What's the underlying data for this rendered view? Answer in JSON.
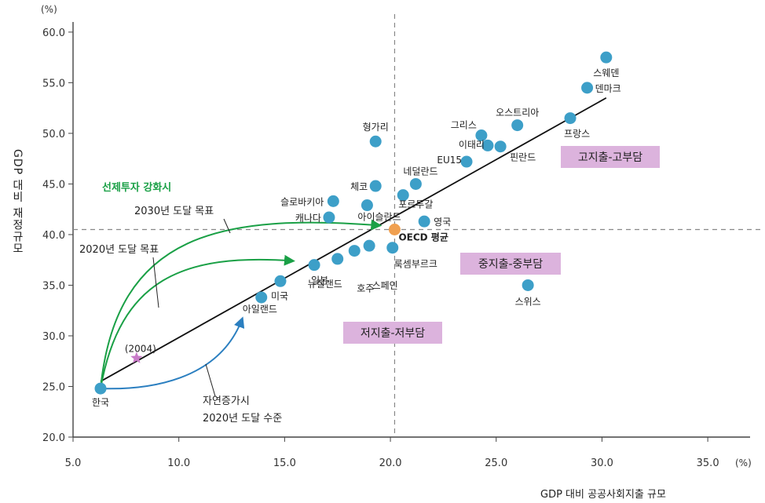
{
  "chart_data": {
    "type": "scatter",
    "xlabel": "GDP 대비 공공사회지출 규모",
    "ylabel": "GDP 대비 재정규모",
    "x_unit": "(%)",
    "y_unit": "(%)",
    "xlim": [
      5.0,
      37.0
    ],
    "ylim": [
      20.0,
      61.0
    ],
    "x_ticks": [
      "5.0",
      "10.0",
      "15.0",
      "20.0",
      "25.0",
      "30.0",
      "35.0"
    ],
    "y_ticks": [
      "20.0",
      "25.0",
      "30.0",
      "35.0",
      "40.0",
      "45.0",
      "50.0",
      "55.0",
      "60.0"
    ],
    "grid": false,
    "reference_lines": {
      "x": 20.2,
      "y": 40.5
    },
    "points": [
      {
        "label": "스웨덴",
        "x": 30.2,
        "y": 57.5
      },
      {
        "label": "덴마크",
        "x": 29.3,
        "y": 54.5
      },
      {
        "label": "프랑스",
        "x": 28.5,
        "y": 51.5
      },
      {
        "label": "오스트리아",
        "x": 26.0,
        "y": 50.8
      },
      {
        "label": "그리스",
        "x": 24.3,
        "y": 49.8
      },
      {
        "label": "이태리",
        "x": 24.6,
        "y": 48.8
      },
      {
        "label": "핀란드",
        "x": 25.2,
        "y": 48.7
      },
      {
        "label": "EU15",
        "x": 23.6,
        "y": 47.2
      },
      {
        "label": "형가리",
        "x": 19.3,
        "y": 49.2
      },
      {
        "label": "네덜란드",
        "x": 21.2,
        "y": 45.0
      },
      {
        "label": "체코",
        "x": 19.3,
        "y": 44.8
      },
      {
        "label": "포르투갈",
        "x": 20.6,
        "y": 43.9
      },
      {
        "label": "슬로바키아",
        "x": 17.3,
        "y": 43.3
      },
      {
        "label": "아이슬란드",
        "x": 18.9,
        "y": 42.9
      },
      {
        "label": "캐나다",
        "x": 17.1,
        "y": 41.7
      },
      {
        "label": "영국",
        "x": 21.6,
        "y": 41.3
      },
      {
        "label": "룩셈부르크",
        "x": 20.1,
        "y": 38.7
      },
      {
        "label": "스페인",
        "x": 19.0,
        "y": 38.9
      },
      {
        "label": "호주",
        "x": 18.3,
        "y": 38.4
      },
      {
        "label": "뉴질랜드",
        "x": 17.5,
        "y": 37.6
      },
      {
        "label": "일본",
        "x": 16.4,
        "y": 37.0
      },
      {
        "label": "미국",
        "x": 14.8,
        "y": 35.4
      },
      {
        "label": "아일랜드",
        "x": 13.9,
        "y": 33.8
      },
      {
        "label": "스위스",
        "x": 26.5,
        "y": 35.0
      },
      {
        "label": "한국",
        "x": 6.3,
        "y": 24.8
      }
    ],
    "oecd_average": {
      "label": "OECD 평균",
      "x": 20.2,
      "y": 40.5
    },
    "marker_2004": {
      "label": "(2004)",
      "x": 8.0,
      "y": 27.8
    },
    "regression_line": {
      "from": [
        6.3,
        25.5
      ],
      "to": [
        30.2,
        53.5
      ]
    },
    "paths": [
      {
        "label": "선제투자 강화시",
        "color": "#1aa046"
      },
      {
        "label": "2030년 도달 목표",
        "color": "#1aa046",
        "end": [
          19.5,
          40.9
        ]
      },
      {
        "label": "2020년 도달 목표",
        "color": "#1aa046",
        "end": [
          15.4,
          37.4
        ]
      },
      {
        "label": "자연증가시\n2020년 도달 수준",
        "color": "#2b7fc0",
        "end": [
          13.0,
          31.7
        ]
      }
    ],
    "quadrant_labels": [
      "고지출-고부담",
      "중지출-중부담",
      "저지출-저부담"
    ]
  },
  "colors": {
    "point": "#3d9fc8",
    "oecd": "#f0a050",
    "star": "#c87bc8",
    "green": "#1aa046",
    "blue": "#2b7fc0",
    "quad_bg": "#dcb3dd",
    "regression": "#111111"
  }
}
